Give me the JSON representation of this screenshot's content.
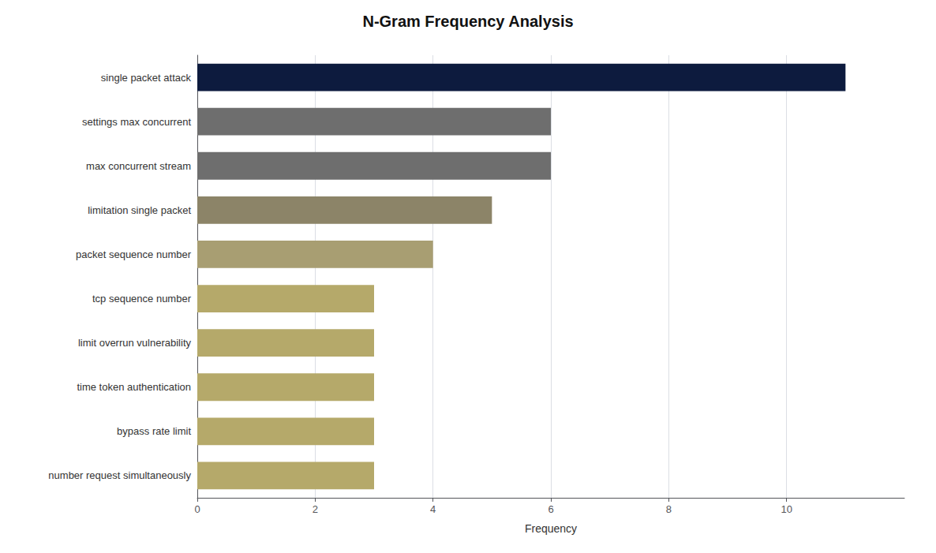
{
  "chart_data": {
    "type": "bar",
    "orientation": "horizontal",
    "title": "N-Gram Frequency Analysis",
    "xlabel": "Frequency",
    "categories": [
      "number request simultaneously",
      "bypass rate limit",
      "time token authentication",
      "limit overrun vulnerability",
      "tcp sequence number",
      "packet sequence number",
      "limitation single packet",
      "max concurrent stream",
      "settings max concurrent",
      "single packet attack"
    ],
    "values": [
      3,
      3,
      3,
      3,
      3,
      4,
      5,
      6,
      6,
      11
    ],
    "colors": [
      "#b5a96a",
      "#b5a96a",
      "#b5a96a",
      "#b5a96a",
      "#b5a96a",
      "#a89e72",
      "#8c8468",
      "#6e6e6e",
      "#6e6e6e",
      "#0d1b3e"
    ],
    "xlim": [
      0,
      12
    ],
    "xticks": [
      0,
      2,
      4,
      6,
      8,
      10
    ],
    "grid": true
  }
}
